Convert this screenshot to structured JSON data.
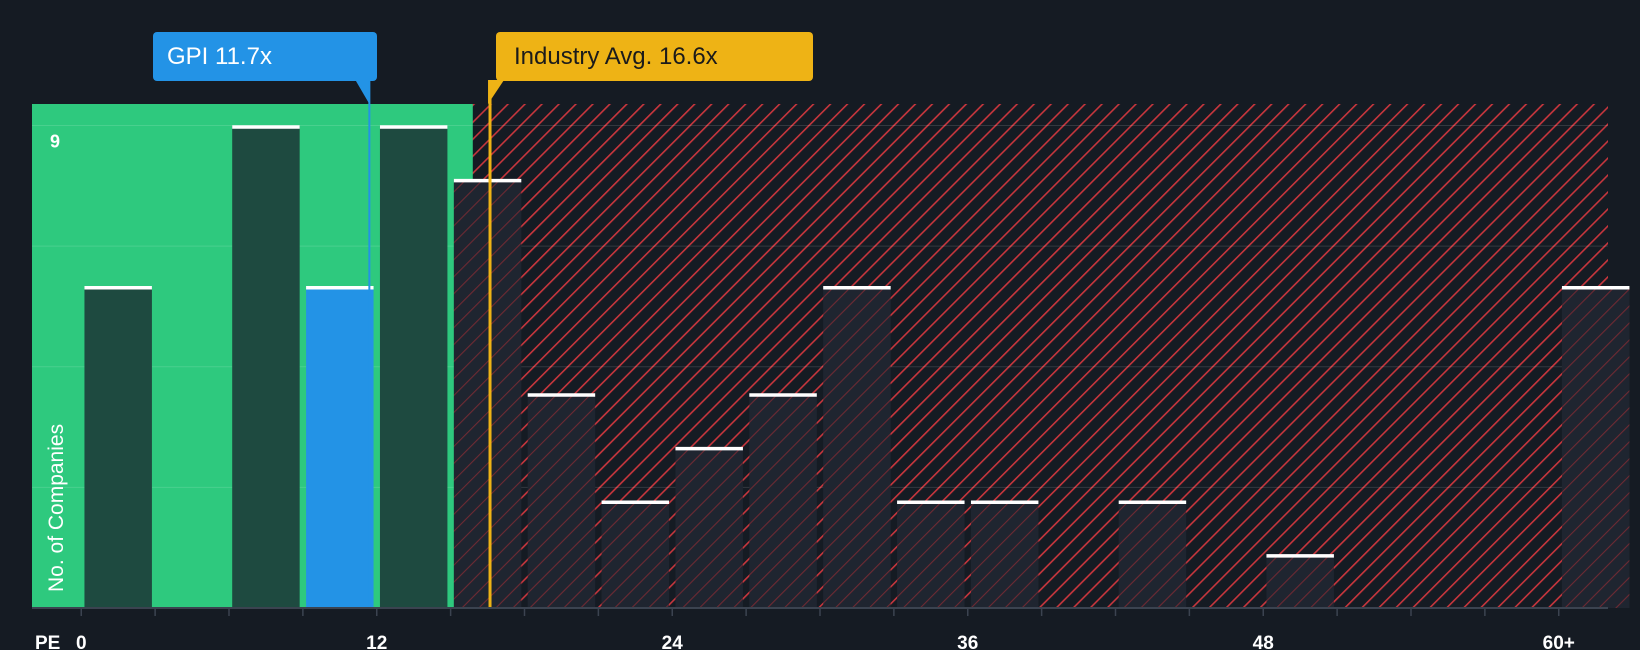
{
  "chart_data": {
    "type": "bar",
    "title": "",
    "xlabel": "PE",
    "ylabel": "No. of Companies",
    "bin_width": 3,
    "xlim": [
      -2,
      62
    ],
    "ylim": [
      0,
      9.4
    ],
    "bins": [
      {
        "start": 0,
        "count": 6
      },
      {
        "start": 3,
        "count": 0
      },
      {
        "start": 6,
        "count": 9
      },
      {
        "start": 9,
        "count": 6
      },
      {
        "start": 12,
        "count": 9
      },
      {
        "start": 15,
        "count": 8
      },
      {
        "start": 18,
        "count": 4
      },
      {
        "start": 21,
        "count": 2
      },
      {
        "start": 24,
        "count": 3
      },
      {
        "start": 27,
        "count": 4
      },
      {
        "start": 30,
        "count": 6
      },
      {
        "start": 33,
        "count": 2
      },
      {
        "start": 36,
        "count": 2
      },
      {
        "start": 39,
        "count": 0
      },
      {
        "start": 42,
        "count": 2
      },
      {
        "start": 45,
        "count": 0
      },
      {
        "start": 48,
        "count": 1
      },
      {
        "start": 51,
        "count": 0
      },
      {
        "start": 54,
        "count": 0
      },
      {
        "start": 57,
        "count": 0
      },
      {
        "start": 60,
        "count": 6
      }
    ],
    "x_ticks": [
      {
        "value": 0,
        "label": "0"
      },
      {
        "value": 12,
        "label": "12"
      },
      {
        "value": 24,
        "label": "24"
      },
      {
        "value": 36,
        "label": "36"
      },
      {
        "value": 48,
        "label": "48"
      },
      {
        "value": 60,
        "label": "60+"
      }
    ],
    "y_ticks": [
      {
        "value": 9,
        "label": "9"
      }
    ],
    "gridlines_y": [
      2.25,
      4.5,
      6.75,
      9
    ],
    "highlight_bin_start": 9,
    "gpi": {
      "label": "GPI 11.7x",
      "value": 11.7
    },
    "industry_avg": {
      "label": "Industry Avg. 16.6x",
      "value": 16.6
    },
    "fair_region_end": 15.9,
    "colors": {
      "background": "#151b23",
      "fair_region": "#2ec97e",
      "bar_in_fair": "#1e4a40",
      "bar_out": "#1f2530",
      "bar_highlight": "#2393e6",
      "hatch": "#c8363d",
      "bar_cap": "#ffffff",
      "gpi_line": "#2393e6",
      "industry_line": "#eeb315",
      "text": "#ffffff"
    }
  }
}
